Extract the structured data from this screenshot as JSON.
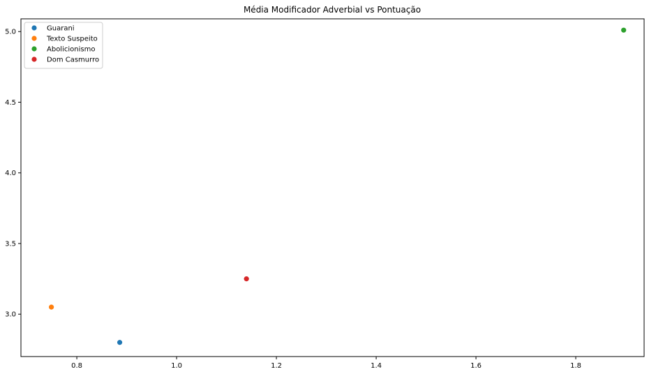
{
  "chart_data": {
    "type": "scatter",
    "title": "Média Modificador Adverbial vs Pontuação",
    "xlabel": "",
    "ylabel": "",
    "xlim": [
      0.688,
      1.937
    ],
    "ylim": [
      2.7,
      5.09
    ],
    "xticks": [
      0.8,
      1.0,
      1.2,
      1.4,
      1.6,
      1.8
    ],
    "xtick_labels": [
      "0.8",
      "1.0",
      "1.2",
      "1.4",
      "1.6",
      "1.8"
    ],
    "yticks": [
      3.0,
      3.5,
      4.0,
      4.5,
      5.0
    ],
    "ytick_labels": [
      "3.0",
      "3.5",
      "4.0",
      "4.5",
      "5.0"
    ],
    "grid": false,
    "legend_position": "top-left",
    "series": [
      {
        "name": "Guarani",
        "color": "#1f77b4",
        "points": [
          [
            0.886,
            2.8
          ]
        ]
      },
      {
        "name": "Texto Suspeito",
        "color": "#ff7f0e",
        "points": [
          [
            0.749,
            3.05
          ]
        ]
      },
      {
        "name": "Abolicionismo",
        "color": "#2ca02c",
        "points": [
          [
            1.896,
            5.01
          ]
        ]
      },
      {
        "name": "Dom Casmurro",
        "color": "#d62728",
        "points": [
          [
            1.14,
            3.25
          ]
        ]
      }
    ]
  }
}
